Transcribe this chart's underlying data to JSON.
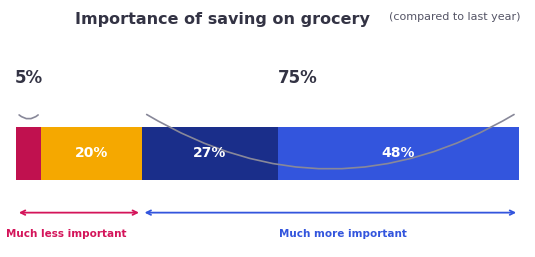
{
  "title_bold": "Importance of saving on grocery",
  "title_normal": " (compared to last year)",
  "bar_segments": [
    {
      "label": "",
      "value": 5,
      "color": "#c0114f"
    },
    {
      "label": "20%",
      "value": 20,
      "color": "#f5a800"
    },
    {
      "label": "27%",
      "value": 27,
      "color": "#1a2e8a"
    },
    {
      "label": "48%",
      "value": 48,
      "color": "#3355dd"
    }
  ],
  "segment_labels": [
    "",
    "20%",
    "27%",
    "48%"
  ],
  "left_brace_label": "5%",
  "right_brace_label": "75%",
  "left_arrow_label": "Much less important",
  "right_arrow_label": "Much more important",
  "left_label_color": "#d4145a",
  "right_label_color": "#3355dd",
  "background_color": "#ffffff",
  "bar_height": 0.42,
  "ylim": [
    -0.72,
    0.85
  ],
  "xlim": [
    0,
    100
  ],
  "title_bold_color": "#333344",
  "title_normal_color": "#555566"
}
